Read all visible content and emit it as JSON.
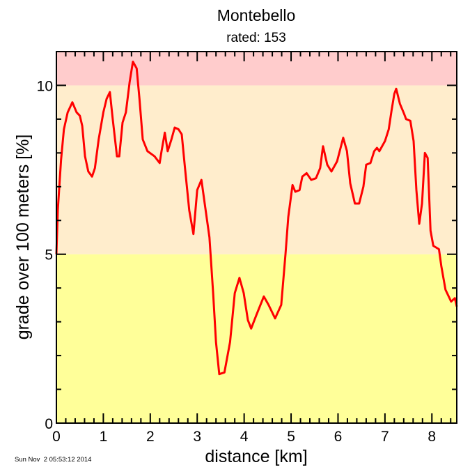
{
  "chart_data": {
    "type": "line",
    "title": "Montebello",
    "subtitle": "rated: 153",
    "xlabel": "distance [km]",
    "ylabel": "grade over 100 meters [%]",
    "xlim": [
      0,
      8.53
    ],
    "ylim": [
      0,
      11
    ],
    "x_ticks": [
      0,
      1,
      2,
      3,
      4,
      5,
      6,
      7,
      8
    ],
    "x_tick_labels": [
      "0",
      "1",
      "2",
      "3",
      "4",
      "5",
      "6",
      "7",
      "8"
    ],
    "y_ticks": [
      0,
      5,
      10
    ],
    "y_tick_labels": [
      "0",
      "5",
      "10"
    ],
    "grid": false,
    "legend": "none",
    "bands": [
      {
        "from": 0,
        "to": 5,
        "color": "#ffff99"
      },
      {
        "from": 5,
        "to": 10,
        "color": "#ffedcc"
      },
      {
        "from": 10,
        "to": 11,
        "color": "#ffcccc"
      }
    ],
    "line_color": "#ff0000",
    "x": [
      0,
      0.03,
      0.1,
      0.16,
      0.24,
      0.34,
      0.43,
      0.5,
      0.55,
      0.61,
      0.68,
      0.76,
      0.82,
      0.9,
      1.0,
      1.07,
      1.14,
      1.2,
      1.29,
      1.34,
      1.41,
      1.48,
      1.56,
      1.63,
      1.71,
      1.77,
      1.84,
      1.94,
      2.09,
      2.2,
      2.24,
      2.31,
      2.37,
      2.45,
      2.52,
      2.6,
      2.67,
      2.74,
      2.83,
      2.92,
      3.0,
      3.09,
      3.16,
      3.26,
      3.34,
      3.4,
      3.47,
      3.58,
      3.7,
      3.8,
      3.9,
      3.99,
      4.08,
      4.15,
      4.26,
      4.42,
      4.52,
      4.66,
      4.79,
      4.88,
      4.94,
      5.03,
      5.09,
      5.18,
      5.24,
      5.33,
      5.43,
      5.53,
      5.62,
      5.68,
      5.77,
      5.86,
      5.98,
      6.11,
      6.19,
      6.26,
      6.36,
      6.45,
      6.54,
      6.6,
      6.69,
      6.77,
      6.83,
      6.88,
      7.0,
      7.08,
      7.14,
      7.2,
      7.24,
      7.32,
      7.41,
      7.45,
      7.54,
      7.61,
      7.67,
      7.73,
      7.79,
      7.85,
      7.91,
      7.97,
      8.03,
      8.15,
      8.2,
      8.29,
      8.41,
      8.49,
      8.53
    ],
    "y": [
      5.0,
      6.3,
      7.8,
      8.7,
      9.2,
      9.5,
      9.2,
      9.1,
      8.8,
      7.9,
      7.45,
      7.3,
      7.55,
      8.4,
      9.2,
      9.6,
      9.8,
      9.0,
      7.9,
      7.9,
      8.9,
      9.2,
      10.1,
      10.7,
      10.5,
      9.6,
      8.4,
      8.05,
      7.9,
      7.7,
      8.05,
      8.6,
      8.05,
      8.4,
      8.75,
      8.7,
      8.55,
      7.55,
      6.3,
      5.6,
      6.9,
      7.2,
      6.5,
      5.5,
      3.85,
      2.4,
      1.45,
      1.5,
      2.4,
      3.85,
      4.3,
      3.85,
      3.05,
      2.8,
      3.2,
      3.75,
      3.5,
      3.1,
      3.5,
      5.0,
      6.1,
      7.05,
      6.85,
      6.9,
      7.3,
      7.4,
      7.2,
      7.25,
      7.55,
      8.2,
      7.65,
      7.45,
      7.75,
      8.45,
      8.05,
      7.1,
      6.5,
      6.5,
      7.0,
      7.65,
      7.7,
      8.05,
      8.15,
      8.05,
      8.35,
      8.7,
      9.25,
      9.75,
      9.9,
      9.45,
      9.15,
      9.0,
      8.95,
      8.35,
      6.9,
      5.9,
      6.5,
      8.0,
      7.85,
      5.7,
      5.25,
      5.15,
      4.65,
      3.95,
      3.6,
      3.7,
      3.45
    ]
  },
  "footer": {
    "timestamp": "Sun Nov  2 05:53:12 2014"
  }
}
